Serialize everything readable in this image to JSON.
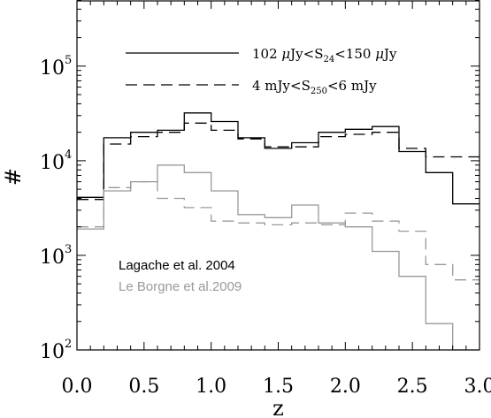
{
  "chart_data": {
    "type": "histogram",
    "xlabel": "z",
    "ylabel": "#",
    "xlim": [
      0.0,
      3.0
    ],
    "ylim": [
      100,
      500000
    ],
    "yscale": "log",
    "x_ticks": [
      "0.0",
      "0.5",
      "1.0",
      "1.5",
      "2.0",
      "2.5",
      "3.0"
    ],
    "y_ticks": [
      {
        "base": "10",
        "exp": "2",
        "value": 100
      },
      {
        "base": "10",
        "exp": "3",
        "value": 1000
      },
      {
        "base": "10",
        "exp": "4",
        "value": 10000
      },
      {
        "base": "10",
        "exp": "5",
        "value": 100000
      }
    ],
    "bin_edges": [
      0.0,
      0.2,
      0.4,
      0.6,
      0.8,
      1.0,
      1.2,
      1.4,
      1.6,
      1.8,
      2.0,
      2.2,
      2.4,
      2.6,
      2.8,
      3.0
    ],
    "series": [
      {
        "model": "Lagache et al. 2004",
        "selection": "S24",
        "linestyle": "solid",
        "color": "#000000",
        "values": [
          4100,
          17500,
          20000,
          21000,
          32000,
          26000,
          17500,
          13500,
          15500,
          20000,
          21500,
          23000,
          12500,
          7500,
          3500
        ]
      },
      {
        "model": "Lagache et al. 2004",
        "selection": "S250",
        "linestyle": "dashed",
        "color": "#000000",
        "values": [
          3900,
          15000,
          18000,
          20000,
          25000,
          21000,
          17000,
          14000,
          14000,
          18000,
          19000,
          20000,
          13500,
          11000,
          11000
        ]
      },
      {
        "model": "Le Borgne et al.2009",
        "selection": "S24",
        "linestyle": "solid",
        "color": "#999999",
        "values": [
          1900,
          4800,
          6000,
          9000,
          7500,
          4800,
          2700,
          2500,
          3400,
          2200,
          2000,
          1100,
          600,
          190,
          70
        ]
      },
      {
        "model": "Le Borgne et al.2009",
        "selection": "S250",
        "linestyle": "dashed",
        "color": "#999999",
        "values": [
          2000,
          5200,
          6000,
          4000,
          3200,
          2300,
          2200,
          2100,
          2200,
          2100,
          2800,
          2300,
          1800,
          800,
          550
        ]
      }
    ],
    "legend": {
      "placement": "top-center",
      "entries": [
        {
          "linestyle": "solid",
          "parts": [
            {
              "text": "102 "
            },
            {
              "text": "μ",
              "italic": true
            },
            {
              "text": "Jy<S"
            },
            {
              "text": "24",
              "sub": true
            },
            {
              "text": "<150 "
            },
            {
              "text": "μ",
              "italic": true
            },
            {
              "text": "Jy"
            }
          ]
        },
        {
          "linestyle": "dashed",
          "parts": [
            {
              "text": "4 mJy<S"
            },
            {
              "text": "250",
              "sub": true
            },
            {
              "text": "<6 mJy"
            }
          ]
        }
      ]
    },
    "annotations": [
      {
        "text": "Lagache et al. 2004",
        "color": "#000000"
      },
      {
        "text": "Le Borgne et al.2009",
        "color": "#999999"
      }
    ]
  }
}
